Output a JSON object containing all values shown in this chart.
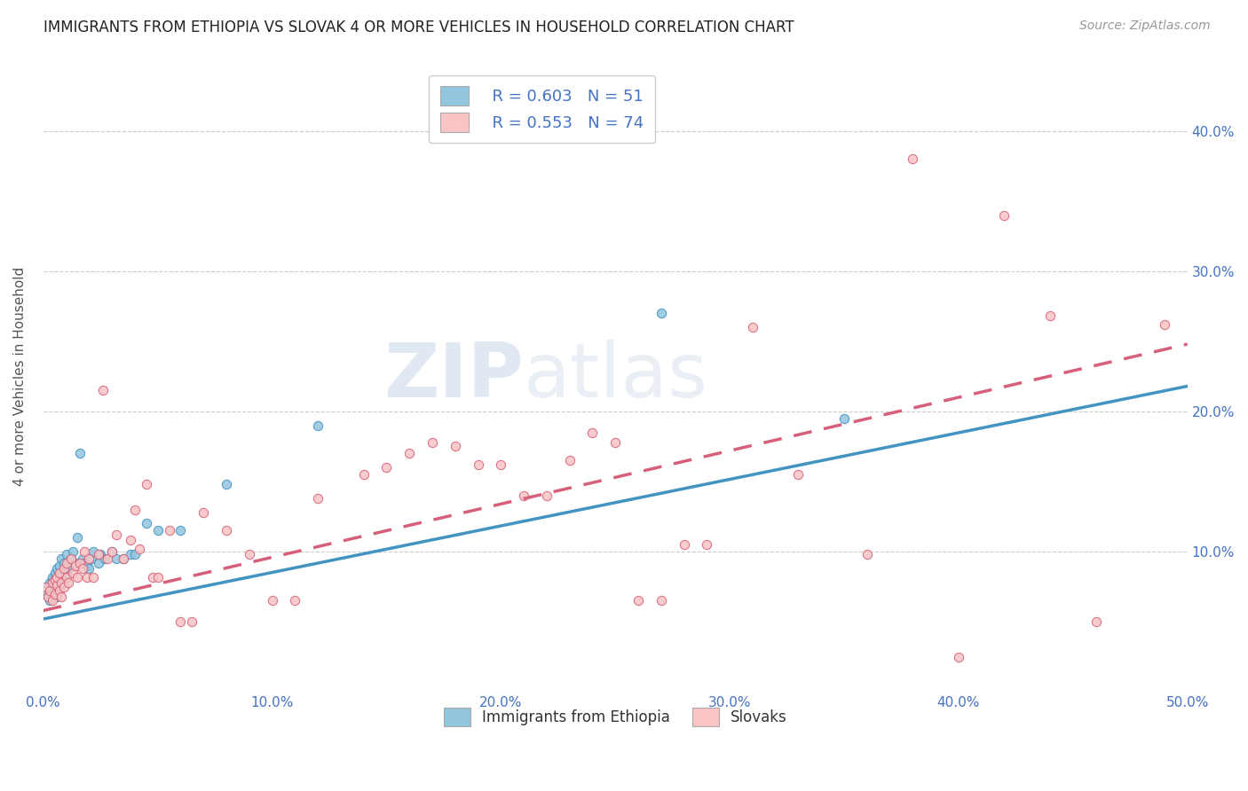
{
  "title": "IMMIGRANTS FROM ETHIOPIA VS SLOVAK 4 OR MORE VEHICLES IN HOUSEHOLD CORRELATION CHART",
  "source": "Source: ZipAtlas.com",
  "ylabel": "4 or more Vehicles in Household",
  "xlim": [
    0.0,
    0.5
  ],
  "ylim": [
    0.0,
    0.45
  ],
  "xticks": [
    0.0,
    0.1,
    0.2,
    0.3,
    0.4,
    0.5
  ],
  "yticks": [
    0.1,
    0.2,
    0.3,
    0.4
  ],
  "xticklabels": [
    "0.0%",
    "10.0%",
    "20.0%",
    "30.0%",
    "40.0%",
    "50.0%"
  ],
  "yticklabels": [
    "10.0%",
    "20.0%",
    "30.0%",
    "40.0%"
  ],
  "legend_labels": [
    "Immigrants from Ethiopia",
    "Slovaks"
  ],
  "r_ethiopia": 0.603,
  "n_ethiopia": 51,
  "r_slovak": 0.553,
  "n_slovak": 74,
  "color_ethiopia": "#92c5de",
  "color_slovak": "#f4a582",
  "color_slovak_scatter": "#f9c4c4",
  "line_color_ethiopia": "#4393c3",
  "line_color_slovak": "#d6607a",
  "ethiopia_x": [
    0.001,
    0.002,
    0.002,
    0.003,
    0.003,
    0.004,
    0.004,
    0.004,
    0.005,
    0.005,
    0.005,
    0.006,
    0.006,
    0.006,
    0.007,
    0.007,
    0.007,
    0.008,
    0.008,
    0.008,
    0.009,
    0.009,
    0.01,
    0.01,
    0.011,
    0.012,
    0.013,
    0.014,
    0.015,
    0.016,
    0.017,
    0.018,
    0.019,
    0.02,
    0.021,
    0.022,
    0.024,
    0.025,
    0.027,
    0.03,
    0.032,
    0.035,
    0.038,
    0.04,
    0.045,
    0.05,
    0.06,
    0.08,
    0.12,
    0.27,
    0.35
  ],
  "ethiopia_y": [
    0.072,
    0.068,
    0.075,
    0.065,
    0.078,
    0.07,
    0.08,
    0.082,
    0.073,
    0.076,
    0.085,
    0.072,
    0.068,
    0.088,
    0.082,
    0.076,
    0.09,
    0.078,
    0.085,
    0.095,
    0.08,
    0.092,
    0.085,
    0.098,
    0.088,
    0.095,
    0.1,
    0.092,
    0.11,
    0.17,
    0.095,
    0.092,
    0.09,
    0.088,
    0.095,
    0.1,
    0.092,
    0.098,
    0.095,
    0.1,
    0.095,
    0.095,
    0.098,
    0.098,
    0.12,
    0.115,
    0.115,
    0.148,
    0.19,
    0.27,
    0.195
  ],
  "slovak_x": [
    0.001,
    0.002,
    0.003,
    0.004,
    0.004,
    0.005,
    0.005,
    0.006,
    0.006,
    0.007,
    0.007,
    0.008,
    0.008,
    0.009,
    0.009,
    0.01,
    0.01,
    0.011,
    0.012,
    0.013,
    0.014,
    0.015,
    0.016,
    0.017,
    0.018,
    0.019,
    0.02,
    0.022,
    0.024,
    0.026,
    0.028,
    0.03,
    0.032,
    0.035,
    0.038,
    0.04,
    0.042,
    0.045,
    0.048,
    0.05,
    0.055,
    0.06,
    0.065,
    0.07,
    0.08,
    0.09,
    0.1,
    0.11,
    0.12,
    0.14,
    0.15,
    0.16,
    0.17,
    0.18,
    0.19,
    0.2,
    0.21,
    0.22,
    0.23,
    0.24,
    0.25,
    0.26,
    0.27,
    0.28,
    0.29,
    0.31,
    0.33,
    0.36,
    0.38,
    0.4,
    0.42,
    0.44,
    0.46,
    0.49
  ],
  "slovak_y": [
    0.075,
    0.068,
    0.072,
    0.078,
    0.065,
    0.08,
    0.07,
    0.076,
    0.082,
    0.072,
    0.085,
    0.078,
    0.068,
    0.088,
    0.075,
    0.082,
    0.092,
    0.078,
    0.095,
    0.085,
    0.09,
    0.082,
    0.092,
    0.088,
    0.1,
    0.082,
    0.095,
    0.082,
    0.098,
    0.215,
    0.095,
    0.1,
    0.112,
    0.095,
    0.108,
    0.13,
    0.102,
    0.148,
    0.082,
    0.082,
    0.115,
    0.05,
    0.05,
    0.128,
    0.115,
    0.098,
    0.065,
    0.065,
    0.138,
    0.155,
    0.16,
    0.17,
    0.178,
    0.175,
    0.162,
    0.162,
    0.14,
    0.14,
    0.165,
    0.185,
    0.178,
    0.065,
    0.065,
    0.105,
    0.105,
    0.26,
    0.155,
    0.098,
    0.38,
    0.025,
    0.34,
    0.268,
    0.05,
    0.262
  ],
  "line_ethiopia_x0": 0.0,
  "line_ethiopia_y0": 0.052,
  "line_ethiopia_x1": 0.5,
  "line_ethiopia_y1": 0.218,
  "line_slovak_x0": 0.0,
  "line_slovak_y0": 0.058,
  "line_slovak_x1": 0.5,
  "line_slovak_y1": 0.248
}
